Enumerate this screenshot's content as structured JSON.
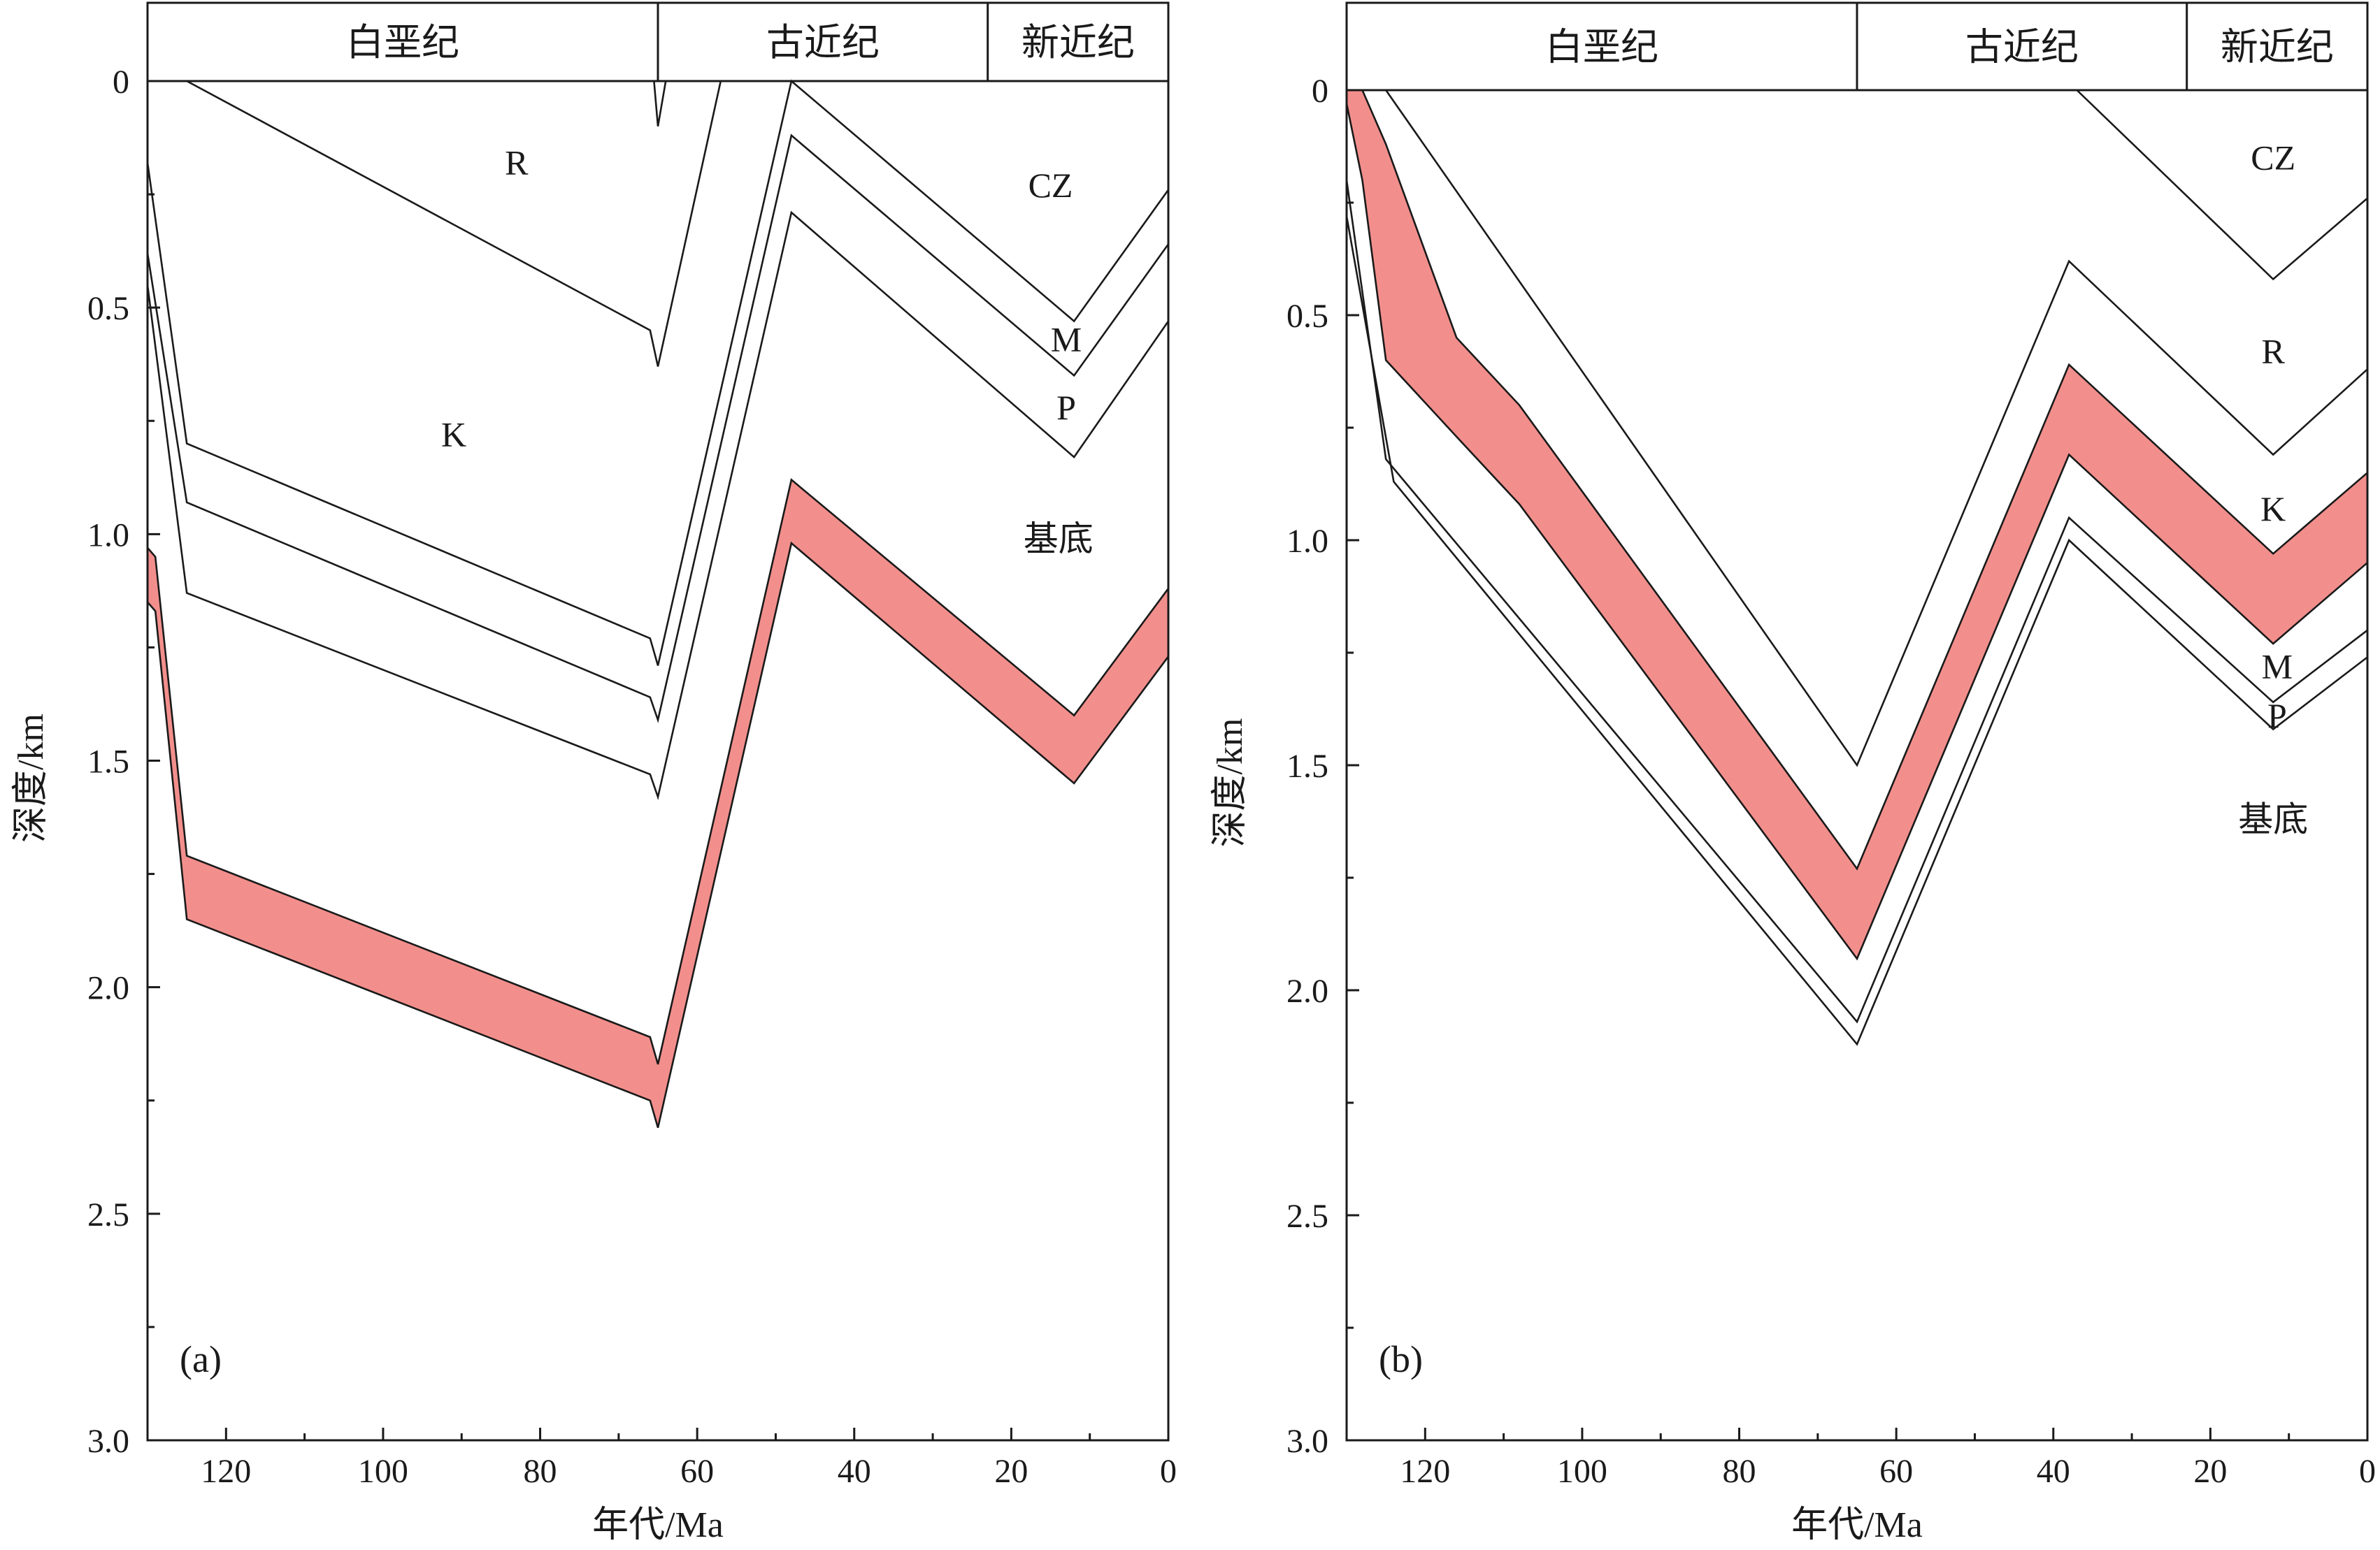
{
  "chart_data": [
    {
      "type": "line",
      "panel_label": "(a)",
      "xlabel": "年代/Ma",
      "ylabel": "深度/km",
      "xlim": [
        130,
        0
      ],
      "ylim": [
        0,
        3.0
      ],
      "x_ticks": [
        120,
        100,
        80,
        60,
        40,
        20,
        0
      ],
      "y_ticks": [
        0,
        0.5,
        1.0,
        1.5,
        2.0,
        2.5,
        3.0
      ],
      "y_tick_labels": [
        "0",
        "0.5",
        "1.0",
        "1.5",
        "2.0",
        "2.5",
        "3.0"
      ],
      "periods": [
        {
          "name": "白垩纪",
          "from": 130,
          "to": 65
        },
        {
          "name": "古近纪",
          "from": 65,
          "to": 23
        },
        {
          "name": "新近纪",
          "from": 23,
          "to": 0
        }
      ],
      "horizons": [
        {
          "x": [
            130,
            125,
            66,
            65,
            57
          ],
          "y": [
            0,
            0,
            0.55,
            0.63,
            0
          ]
        },
        {
          "x": [
            130,
            66,
            65.5,
            65,
            64
          ],
          "y": [
            0,
            0,
            0,
            0.1,
            0
          ]
        },
        {
          "x": [
            130,
            125,
            66,
            65,
            48,
            12,
            0
          ],
          "y": [
            0.18,
            0.8,
            1.23,
            1.29,
            0,
            0.53,
            0.24
          ]
        },
        {
          "x": [
            130,
            125,
            66,
            65,
            48,
            12,
            0
          ],
          "y": [
            0.38,
            0.93,
            1.36,
            1.41,
            0.12,
            0.65,
            0.36
          ]
        },
        {
          "x": [
            130,
            125,
            66,
            65,
            48,
            12,
            0
          ],
          "y": [
            0.45,
            1.13,
            1.53,
            1.58,
            0.29,
            0.83,
            0.53
          ]
        }
      ],
      "highlight_band": {
        "color": "#f28f8c",
        "x": [
          130,
          129,
          125,
          66,
          65,
          48,
          12,
          0
        ],
        "top": [
          1.03,
          1.05,
          1.71,
          2.11,
          2.17,
          0.88,
          1.4,
          1.12
        ],
        "bottom": [
          1.15,
          1.17,
          1.85,
          2.25,
          2.31,
          1.02,
          1.55,
          1.27
        ]
      },
      "annotations": [
        {
          "text": "R",
          "x": 83,
          "y": 0.18
        },
        {
          "text": "K",
          "x": 91,
          "y": 0.78
        },
        {
          "text": "CZ",
          "x": 15,
          "y": 0.23
        },
        {
          "text": "M",
          "x": 13,
          "y": 0.57
        },
        {
          "text": "P",
          "x": 13,
          "y": 0.72
        },
        {
          "text": "基底",
          "x": 14,
          "y": 1.01
        }
      ]
    },
    {
      "type": "line",
      "panel_label": "(b)",
      "xlabel": "年代/Ma",
      "ylabel": "深度/km",
      "xlim": [
        130,
        0
      ],
      "ylim": [
        0,
        3.0
      ],
      "x_ticks": [
        120,
        100,
        80,
        60,
        40,
        20,
        0
      ],
      "y_ticks": [
        0,
        0.5,
        1.0,
        1.5,
        2.0,
        2.5,
        3.0
      ],
      "y_tick_labels": [
        "0",
        "0.5",
        "1.0",
        "1.5",
        "2.0",
        "2.5",
        "3.0"
      ],
      "periods": [
        {
          "name": "白垩纪",
          "from": 130,
          "to": 65
        },
        {
          "name": "古近纪",
          "from": 65,
          "to": 23
        },
        {
          "name": "新近纪",
          "from": 23,
          "to": 0
        }
      ],
      "horizons": [
        {
          "x": [
            37,
            12,
            0
          ],
          "y": [
            0,
            0.42,
            0.24
          ]
        },
        {
          "x": [
            125,
            65,
            38,
            12,
            0
          ],
          "y": [
            0,
            1.5,
            0.38,
            0.81,
            0.62
          ]
        },
        {
          "x": [
            130,
            125,
            65,
            38,
            12,
            0
          ],
          "y": [
            0.2,
            0.82,
            2.07,
            0.95,
            1.36,
            1.2
          ]
        },
        {
          "x": [
            130,
            124,
            65,
            38,
            12,
            0
          ],
          "y": [
            0.28,
            0.87,
            2.12,
            1.0,
            1.42,
            1.26
          ]
        }
      ],
      "highlight_band": {
        "color": "#f28f8c",
        "x": [
          130,
          128,
          125,
          116,
          108,
          65,
          38,
          12,
          0
        ],
        "top": [
          0,
          0,
          0.12,
          0.55,
          0.7,
          1.73,
          0.61,
          1.03,
          0.85
        ],
        "bottom": [
          0.03,
          0.2,
          0.6,
          0.77,
          0.92,
          1.93,
          0.81,
          1.23,
          1.05
        ]
      },
      "annotations": [
        {
          "text": "CZ",
          "x": 12,
          "y": 0.15
        },
        {
          "text": "R",
          "x": 12,
          "y": 0.58
        },
        {
          "text": "K",
          "x": 12,
          "y": 0.93
        },
        {
          "text": "M",
          "x": 11.5,
          "y": 1.28
        },
        {
          "text": "P",
          "x": 11.5,
          "y": 1.39
        },
        {
          "text": "基底",
          "x": 12,
          "y": 1.62
        }
      ]
    }
  ]
}
